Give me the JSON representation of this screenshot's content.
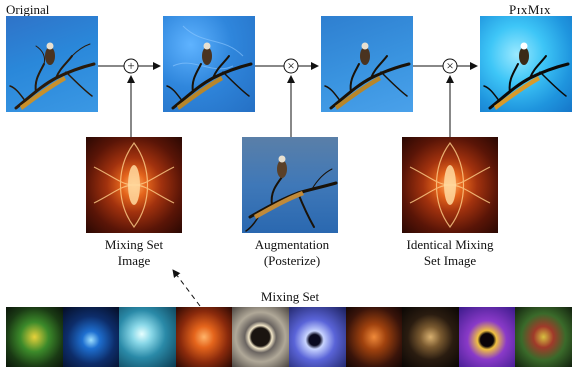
{
  "labels": {
    "original": "Original",
    "pixmix": "PɪxMɪx",
    "mixing_set_image": [
      "Mixing Set",
      "Image"
    ],
    "augmentation": [
      "Augmentation",
      "(Posterize)"
    ],
    "identical_mixing": [
      "Identical Mixing",
      "Set Image"
    ],
    "mixing_set": "Mixing Set"
  },
  "operators": {
    "add": "+",
    "multiply_1": "×",
    "multiply_2": "×"
  },
  "colors": {
    "arrow": "#111111",
    "sky": "#2a88da",
    "fractal_orange": "#e5651c"
  },
  "mixing_set_tiles": [
    "green-yellow-fractal",
    "blue-eye-fractal",
    "teal-spiral-fractal",
    "orange-fractal",
    "grey-ring-fractal",
    "blue-mandelbrot-fractal",
    "orange-brown-fractal",
    "dark-gold-fractal",
    "purple-mandelbrot-fractal",
    "green-red-fractal"
  ]
}
